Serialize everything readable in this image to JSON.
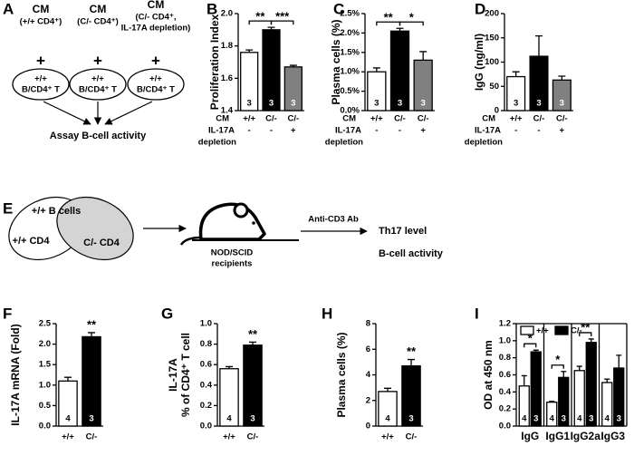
{
  "chart_data": [
    {
      "type": "bar",
      "label": "B",
      "ylabel": "Proliferation Index",
      "ylim": [
        1.4,
        2.0
      ],
      "yticks": [
        1.4,
        1.6,
        1.8,
        {
          "value": 2.0,
          "label": "2.0"
        }
      ],
      "categories": [
        "+/+",
        "C/-",
        "C/-"
      ],
      "categories_label": "CM",
      "depletion": [
        "-",
        "-",
        "+"
      ],
      "depletion_label": [
        "IL-17A",
        "depletion"
      ],
      "values": [
        1.76,
        1.9,
        1.67
      ],
      "errors": [
        0.015,
        0.015,
        0.01
      ],
      "colors": [
        "#ffffff",
        "#000000",
        "#808080"
      ],
      "n": [
        3,
        3,
        3
      ],
      "significance": [
        {
          "bars": [
            0,
            1
          ],
          "label": "**"
        },
        {
          "bars": [
            1,
            2
          ],
          "label": "***"
        }
      ]
    },
    {
      "type": "bar",
      "label": "C",
      "ylabel": "Plasma cells (%)",
      "ylim": [
        0,
        2.5
      ],
      "yticks": [
        {
          "value": 0,
          "label": "0.0%"
        },
        {
          "value": 0.5,
          "label": "0.5%"
        },
        {
          "value": 1.0,
          "label": "1.0%"
        },
        {
          "value": 1.5,
          "label": "1.5%"
        },
        {
          "value": 2.0,
          "label": "2.0%"
        },
        {
          "value": 2.5,
          "label": "2.5%"
        }
      ],
      "categories": [
        "+/+",
        "C/-",
        "C/-"
      ],
      "categories_label": "CM",
      "depletion": [
        "-",
        "-",
        "+"
      ],
      "depletion_label": [
        "IL-17A",
        "depletion"
      ],
      "values": [
        1.0,
        2.05,
        1.3
      ],
      "errors": [
        0.1,
        0.07,
        0.22
      ],
      "colors": [
        "#ffffff",
        "#000000",
        "#808080"
      ],
      "n": [
        3,
        3,
        3
      ],
      "significance": [
        {
          "bars": [
            0,
            1
          ],
          "label": "**"
        },
        {
          "bars": [
            1,
            2
          ],
          "label": "*"
        }
      ]
    },
    {
      "type": "bar",
      "label": "D",
      "ylabel": "IgG (ng/ml)",
      "ylim": [
        0,
        200
      ],
      "yticks": [
        0,
        50,
        100,
        150,
        200
      ],
      "categories": [
        "+/+",
        "C/-",
        "C/-"
      ],
      "categories_label": "CM",
      "depletion": [
        "-",
        "-",
        "+"
      ],
      "depletion_label": [
        "IL-17A",
        "depletion"
      ],
      "values": [
        70,
        112,
        63
      ],
      "errors": [
        10,
        42,
        8
      ],
      "colors": [
        "#ffffff",
        "#000000",
        "#808080"
      ],
      "n": [
        3,
        3,
        3
      ],
      "significance": []
    },
    {
      "type": "bar",
      "label": "F",
      "ylabel": "IL-17A mRNA (Fold)",
      "ylim": [
        0,
        2.5
      ],
      "yticks": [
        {
          "value": 0,
          "label": "0.0"
        },
        0.5,
        {
          "value": 1.0,
          "label": "1.0"
        },
        1.5,
        {
          "value": 2.0,
          "label": "2.0"
        },
        2.5
      ],
      "categories": [
        "+/+",
        "C/-"
      ],
      "values": [
        1.1,
        2.18
      ],
      "errors": [
        0.09,
        0.1
      ],
      "colors": [
        "#ffffff",
        "#000000"
      ],
      "n": [
        4,
        3
      ],
      "significance": [
        {
          "bars": [
            1
          ],
          "label": "**"
        }
      ]
    },
    {
      "type": "bar",
      "label": "G",
      "ylabel": [
        "IL-17A",
        "% of CD4⁺ T cell"
      ],
      "ylim": [
        0,
        1.0
      ],
      "yticks": [
        {
          "value": 0,
          "label": "0.0"
        },
        0.2,
        0.4,
        0.6,
        0.8,
        {
          "value": 1.0,
          "label": "1.0"
        }
      ],
      "categories": [
        "+/+",
        "C/-"
      ],
      "values": [
        0.56,
        0.79
      ],
      "errors": [
        0.02,
        0.03
      ],
      "colors": [
        "#ffffff",
        "#000000"
      ],
      "n": [
        4,
        3
      ],
      "significance": [
        {
          "bars": [
            1
          ],
          "label": "**"
        }
      ]
    },
    {
      "type": "bar",
      "label": "H",
      "ylabel": "Plasma cells (%)",
      "ylim": [
        0,
        8
      ],
      "yticks": [
        0,
        2,
        4,
        6,
        8
      ],
      "categories": [
        "+/+",
        "C/-"
      ],
      "values": [
        2.7,
        4.7
      ],
      "errors": [
        0.25,
        0.5
      ],
      "colors": [
        "#ffffff",
        "#000000"
      ],
      "n": [
        4,
        3
      ],
      "significance": [
        {
          "bars": [
            1
          ],
          "label": "**"
        }
      ]
    },
    {
      "type": "grouped_bar",
      "label": "I",
      "ylabel": "OD at 450 nm",
      "ylim": [
        0,
        1.2
      ],
      "yticks": [
        {
          "value": 0,
          "label": "0.0"
        },
        0.2,
        0.4,
        0.6,
        0.8,
        {
          "value": 1.0,
          "label": "1.0"
        },
        1.2
      ],
      "categories": [
        "IgG",
        "IgG1",
        "IgG2a",
        "IgG3"
      ],
      "series": [
        {
          "name": "+/+",
          "color": "#ffffff",
          "values": [
            0.47,
            0.28,
            0.65,
            0.51
          ],
          "errors": [
            0.12,
            0.01,
            0.05,
            0.04
          ],
          "n": 4
        },
        {
          "name": "C/-",
          "color": "#000000",
          "values": [
            0.87,
            0.57,
            0.98,
            0.68
          ],
          "errors": [
            0.02,
            0.07,
            0.04,
            0.15
          ],
          "n": 3
        }
      ],
      "significance": [
        {
          "group": 0,
          "label": "*"
        },
        {
          "group": 1,
          "label": "*"
        },
        {
          "group": 2,
          "label": "**"
        }
      ]
    }
  ],
  "diagram_a": {
    "label": "A",
    "title": "CM",
    "conditions": [
      [
        "(+/+ CD4⁺)"
      ],
      [
        "(C/- CD4⁺)"
      ],
      [
        "(C/- CD4⁺,",
        "IL-17A depletion)"
      ]
    ],
    "plus": "+",
    "cells": [
      "+/+",
      "B/CD4⁺ T"
    ],
    "result": "Assay B-cell activity"
  },
  "diagram_e": {
    "label": "E",
    "venn": {
      "top": "+/+ B cells",
      "left": "+/+ CD4",
      "right": "C/- CD4"
    },
    "mouse": [
      "NOD/SCID",
      "recipients"
    ],
    "treatment": "Anti-CD3 Ab",
    "readouts": [
      "Th17 level",
      "B-cell activity"
    ]
  }
}
